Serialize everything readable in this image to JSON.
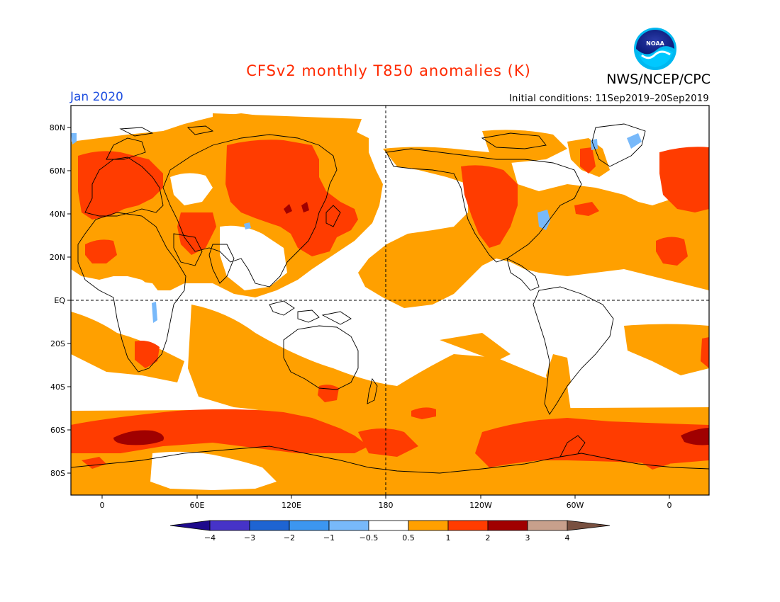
{
  "header": {
    "title": "CFSv2 monthly T850 anomalies (K)",
    "org": "NWS/NCEP/CPC",
    "month": "Jan 2020",
    "initial_conditions": "Initial conditions: 11Sep2019–20Sep2019",
    "logo_text": "NOAA",
    "logo_icon": "noaa-logo-icon"
  },
  "colors": {
    "title": "#ff2a00",
    "month": "#1f4fe0",
    "c_0.5_1": "#ffa000",
    "c_1_2": "#ff3c00",
    "c_2_3": "#a00000",
    "c_neg_0.5_1": "#78b9fa",
    "land_outline": "#000000"
  },
  "axes": {
    "lat_labels": [
      "80N",
      "60N",
      "40N",
      "20N",
      "EQ",
      "20S",
      "40S",
      "60S",
      "80S"
    ],
    "lon_labels": [
      "0",
      "60E",
      "120E",
      "180",
      "120W",
      "60W",
      "0"
    ]
  },
  "colorbar": {
    "units": "K",
    "tick_labels": [
      "−4",
      "−3",
      "−2",
      "−1",
      "−0.5",
      "0.5",
      "1",
      "2",
      "3",
      "4"
    ],
    "colors": [
      "#1e0a8c",
      "#4633c8",
      "#1e64d2",
      "#3c96f0",
      "#78b9fa",
      "#ffffff",
      "#ffa000",
      "#ff3c00",
      "#a00000",
      "#c8a08c",
      "#785040"
    ]
  }
}
